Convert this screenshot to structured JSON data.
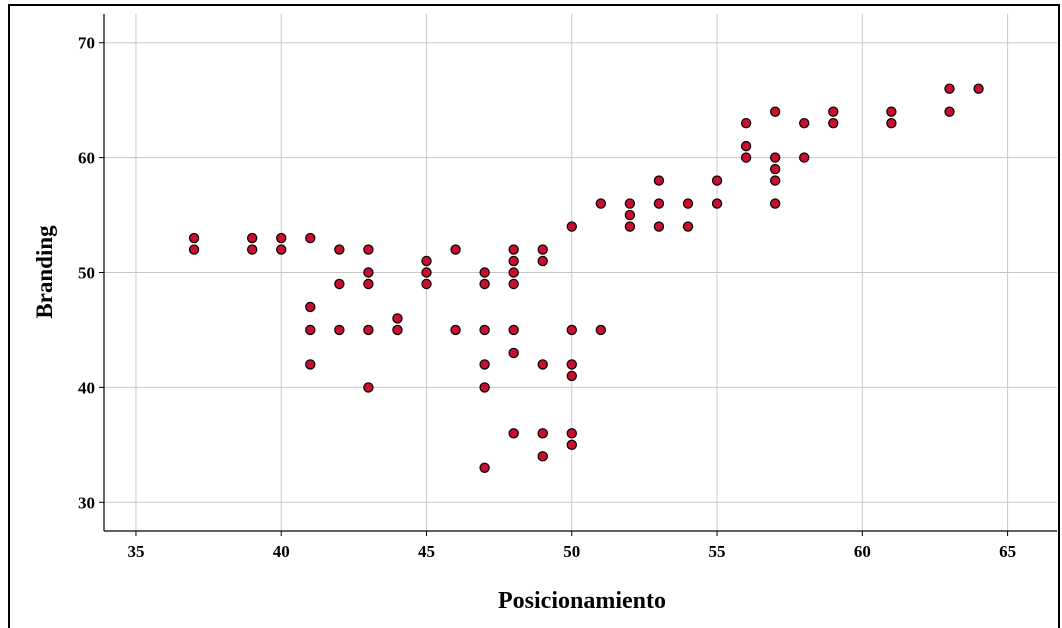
{
  "chart_data": {
    "type": "scatter",
    "xlabel": "Posicionamiento",
    "ylabel": "Branding",
    "xlim": [
      33.9,
      66.7
    ],
    "ylim": [
      27.5,
      72.5
    ],
    "xticks": [
      35,
      40,
      45,
      50,
      55,
      60,
      65
    ],
    "yticks": [
      30,
      40,
      50,
      60,
      70
    ],
    "grid": true,
    "marker_color": "#c8102e",
    "marker_edge_color": "#000000",
    "grid_color": "#c8c8c8",
    "points": [
      [
        37,
        53
      ],
      [
        37,
        52
      ],
      [
        39,
        53
      ],
      [
        39,
        52
      ],
      [
        40,
        53
      ],
      [
        40,
        52
      ],
      [
        41,
        53
      ],
      [
        41,
        47
      ],
      [
        41,
        45
      ],
      [
        41,
        42
      ],
      [
        42,
        52
      ],
      [
        42,
        49
      ],
      [
        42,
        45
      ],
      [
        43,
        52
      ],
      [
        43,
        50
      ],
      [
        43,
        49
      ],
      [
        43,
        45
      ],
      [
        43,
        40
      ],
      [
        44,
        46
      ],
      [
        44,
        45
      ],
      [
        45,
        51
      ],
      [
        45,
        50
      ],
      [
        45,
        49
      ],
      [
        46,
        52
      ],
      [
        46,
        45
      ],
      [
        47,
        50
      ],
      [
        47,
        49
      ],
      [
        47,
        45
      ],
      [
        47,
        42
      ],
      [
        47,
        40
      ],
      [
        47,
        33
      ],
      [
        48,
        52
      ],
      [
        48,
        51
      ],
      [
        48,
        50
      ],
      [
        48,
        49
      ],
      [
        48,
        45
      ],
      [
        48,
        43
      ],
      [
        48,
        36
      ],
      [
        49,
        52
      ],
      [
        49,
        51
      ],
      [
        49,
        42
      ],
      [
        49,
        36
      ],
      [
        49,
        34
      ],
      [
        50,
        54
      ],
      [
        50,
        45
      ],
      [
        50,
        42
      ],
      [
        50,
        41
      ],
      [
        50,
        36
      ],
      [
        50,
        35
      ],
      [
        51,
        56
      ],
      [
        51,
        45
      ],
      [
        52,
        56
      ],
      [
        52,
        55
      ],
      [
        52,
        54
      ],
      [
        53,
        58
      ],
      [
        53,
        56
      ],
      [
        53,
        54
      ],
      [
        54,
        56
      ],
      [
        54,
        54
      ],
      [
        55,
        58
      ],
      [
        55,
        56
      ],
      [
        56,
        63
      ],
      [
        56,
        61
      ],
      [
        56,
        60
      ],
      [
        57,
        64
      ],
      [
        57,
        60
      ],
      [
        57,
        59
      ],
      [
        57,
        58
      ],
      [
        57,
        56
      ],
      [
        58,
        63
      ],
      [
        58,
        60
      ],
      [
        59,
        64
      ],
      [
        59,
        63
      ],
      [
        61,
        64
      ],
      [
        61,
        63
      ],
      [
        63,
        66
      ],
      [
        63,
        64
      ],
      [
        64,
        66
      ]
    ]
  }
}
